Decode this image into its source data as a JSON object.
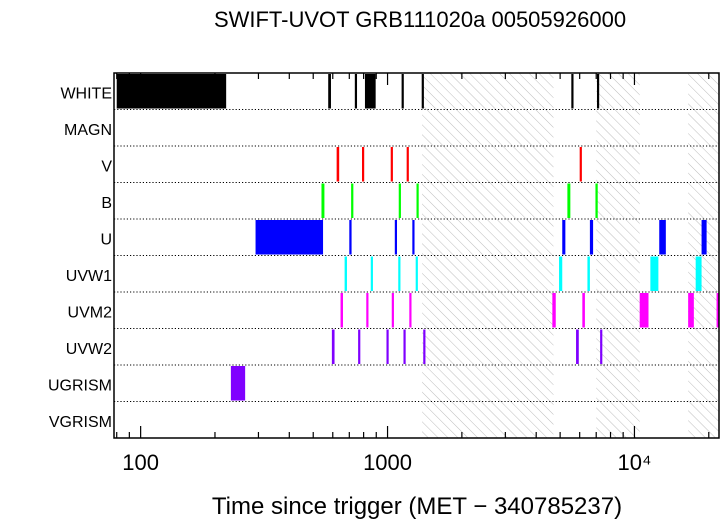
{
  "chart_data": {
    "type": "bar",
    "title": "SWIFT-UVOT GRB111020a 00505926000",
    "xlabel": "Time since trigger (MET − 340785237)",
    "x_scale": "log",
    "xlim": [
      78,
      22000
    ],
    "x_ticks": [
      {
        "value": 100,
        "label": "100"
      },
      {
        "value": 1000,
        "label": "1000"
      },
      {
        "value": 10000,
        "label": "10⁴"
      }
    ],
    "filters": [
      "WHITE",
      "MAGN",
      "V",
      "B",
      "U",
      "UVW1",
      "UVM2",
      "UVW2",
      "UGRISM",
      "VGRISM"
    ],
    "shaded_intervals": [
      [
        1380,
        4700
      ],
      [
        7000,
        10500
      ],
      [
        16500,
        22000
      ]
    ],
    "series": [
      {
        "name": "WHITE",
        "color": "#000000",
        "intervals": [
          [
            80,
            222
          ],
          [
            575,
            590
          ],
          [
            737,
            750
          ],
          [
            810,
            895
          ],
          [
            1140,
            1155
          ],
          [
            1375,
            1385
          ],
          [
            5550,
            5650
          ],
          [
            7050,
            7150
          ]
        ]
      },
      {
        "name": "MAGN",
        "color": "#000000",
        "intervals": []
      },
      {
        "name": "V",
        "color": "#ff0000",
        "intervals": [
          [
            622,
            637
          ],
          [
            788,
            803
          ],
          [
            1030,
            1045
          ],
          [
            1195,
            1215
          ],
          [
            6000,
            6100
          ]
        ]
      },
      {
        "name": "B",
        "color": "#00ff00",
        "intervals": [
          [
            540,
            555
          ],
          [
            712,
            727
          ],
          [
            1110,
            1125
          ],
          [
            1310,
            1330
          ],
          [
            5350,
            5500
          ],
          [
            6950,
            7100
          ]
        ]
      },
      {
        "name": "U",
        "color": "#0000ff",
        "intervals": [
          [
            292,
            548
          ],
          [
            700,
            715
          ],
          [
            1070,
            1085
          ],
          [
            1260,
            1275
          ],
          [
            5100,
            5250
          ],
          [
            6600,
            6800
          ],
          [
            12600,
            13400
          ],
          [
            18700,
            19600
          ]
        ]
      },
      {
        "name": "UVW1",
        "color": "#00ffff",
        "intervals": [
          [
            670,
            685
          ],
          [
            855,
            870
          ],
          [
            1105,
            1120
          ],
          [
            1300,
            1315
          ],
          [
            4950,
            5100
          ],
          [
            6450,
            6600
          ],
          [
            11600,
            12500
          ],
          [
            17700,
            18700
          ]
        ]
      },
      {
        "name": "UVM2",
        "color": "#ff00ff",
        "intervals": [
          [
            645,
            660
          ],
          [
            820,
            835
          ],
          [
            1040,
            1055
          ],
          [
            1225,
            1240
          ],
          [
            4650,
            4800
          ],
          [
            6150,
            6300
          ],
          [
            10500,
            11400
          ],
          [
            16500,
            17400
          ],
          [
            21500,
            22000
          ]
        ]
      },
      {
        "name": "UVW2",
        "color": "#8000ff",
        "intervals": [
          [
            595,
            610
          ],
          [
            760,
            775
          ],
          [
            990,
            1005
          ],
          [
            1160,
            1175
          ],
          [
            1395,
            1405
          ],
          [
            5800,
            5950
          ],
          [
            7260,
            7290
          ]
        ]
      },
      {
        "name": "UGRISM",
        "color": "#8000ff",
        "intervals": [
          [
            232,
            265
          ]
        ]
      },
      {
        "name": "VGRISM",
        "color": "#000000",
        "intervals": []
      }
    ]
  }
}
